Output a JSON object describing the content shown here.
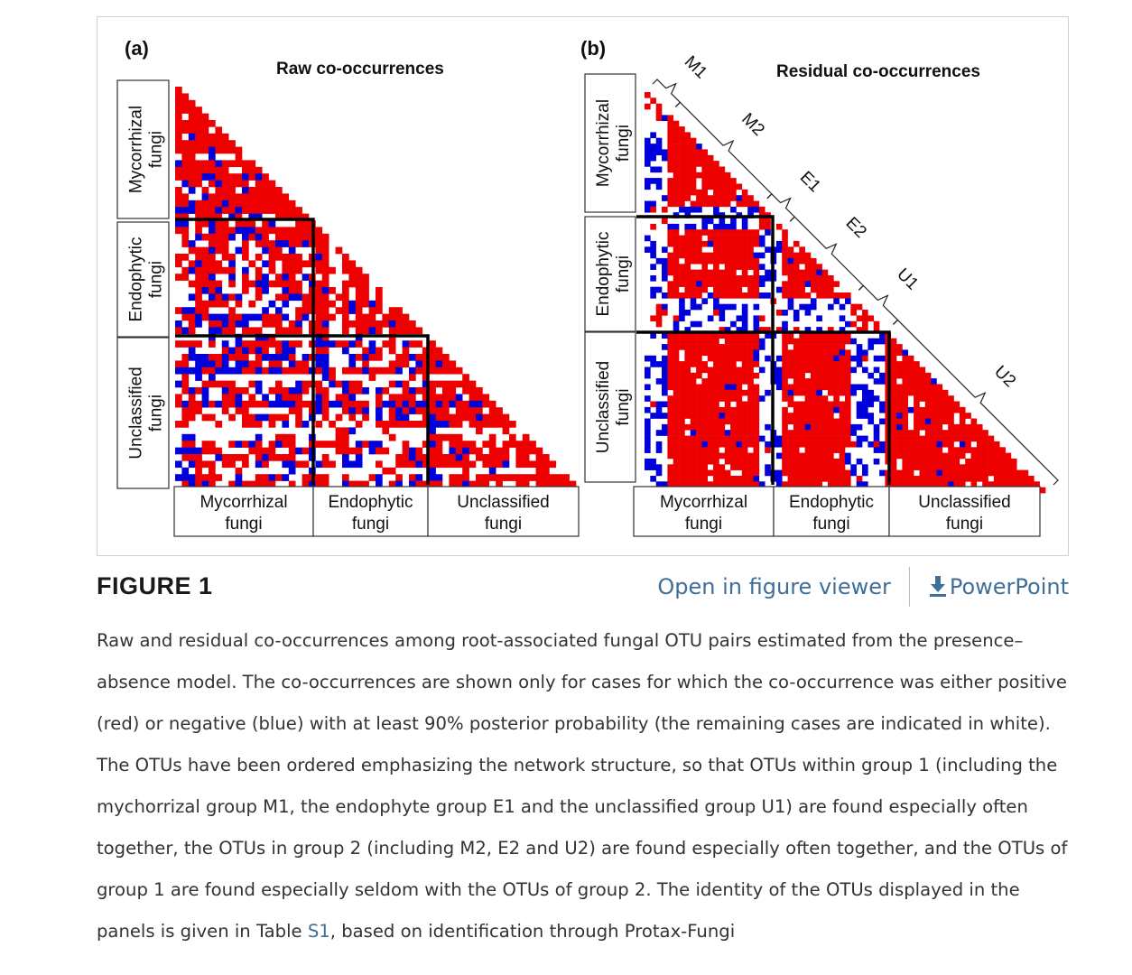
{
  "figure": {
    "panel_a": {
      "letter": "(a)",
      "title": "Raw co-occurrences",
      "row_labels": [
        [
          "Mycorrhizal",
          "fungi"
        ],
        [
          "Endophytic",
          "fungi"
        ],
        [
          "Unclassified",
          "fungi"
        ]
      ],
      "col_labels": [
        [
          "Mycorrhizal",
          "fungi"
        ],
        [
          "Endophytic",
          "fungi"
        ],
        [
          "Unclassified",
          "fungi"
        ]
      ]
    },
    "panel_b": {
      "letter": "(b)",
      "title": "Residual co-occurrences",
      "row_labels": [
        [
          "Mycorrhizal",
          "fungi"
        ],
        [
          "Endophytic",
          "fungi"
        ],
        [
          "Unclassified",
          "fungi"
        ]
      ],
      "col_labels": [
        [
          "Mycorrhizal",
          "fungi"
        ],
        [
          "Endophytic",
          "fungi"
        ],
        [
          "Unclassified",
          "fungi"
        ]
      ],
      "cluster_labels": [
        "M1",
        "M2",
        "E1",
        "E2",
        "U1",
        "U2"
      ]
    },
    "colors": {
      "positive": "#ee0000",
      "negative": "#0000dd",
      "neutral": "#ffffff"
    }
  },
  "header": {
    "title": "FIGURE 1",
    "open_viewer": "Open in figure viewer",
    "powerpoint": "PowerPoint"
  },
  "caption": {
    "lines": [
      "Raw and residual co-occurrences among root-associated fungal OTU pairs estimated from the presence–",
      "absence model. The co-occurrences are shown only for cases for which the co-occurrence was either positive",
      "(red) or negative (blue) with at least 90% posterior probability (the remaining cases are indicated in white).",
      "The OTUs have been ordered emphasizing the network structure, so that OTUs within group 1 (including the",
      "mychorrizal group M1, the endophyte group E1 and the unclassified group U1) are found especially often",
      "together, the OTUs in group 2 (including M2, E2 and U2) are found especially often together, and the OTUs of",
      "group 1 are found especially seldom with the OTUs of group 2. The identity of the OTUs displayed in the"
    ],
    "last_prefix": "panels is given in Table ",
    "table_link": "S1",
    "last_suffix": ", based on identification through Protax-Fungi"
  }
}
